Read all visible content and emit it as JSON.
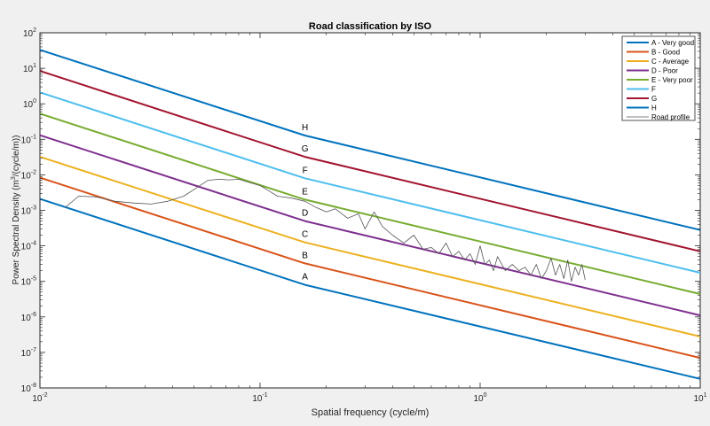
{
  "chart_data": {
    "type": "line",
    "title": "Road classification by ISO",
    "xlabel": "Spatial frequency (cycle/m)",
    "ylabel": {
      "pre": "Power Spectral Density (m",
      "sup": "3",
      "post": "/(cycle/m))"
    },
    "xscale": "log",
    "yscale": "log",
    "xlim": [
      0.01,
      10
    ],
    "ylim": [
      1e-08,
      100
    ],
    "grid": false,
    "legend_position": "top-right",
    "xticks": [
      {
        "value": 0.01,
        "base": "10",
        "exp": "-2"
      },
      {
        "value": 0.1,
        "base": "10",
        "exp": "-1"
      },
      {
        "value": 1,
        "base": "10",
        "exp": "0"
      },
      {
        "value": 10,
        "base": "10",
        "exp": "1"
      }
    ],
    "yticks": [
      {
        "value": 1e-08,
        "base": "10",
        "exp": "-8"
      },
      {
        "value": 1e-07,
        "base": "10",
        "exp": "-7"
      },
      {
        "value": 1e-06,
        "base": "10",
        "exp": "-6"
      },
      {
        "value": 1e-05,
        "base": "10",
        "exp": "-5"
      },
      {
        "value": 0.0001,
        "base": "10",
        "exp": "-4"
      },
      {
        "value": 0.001,
        "base": "10",
        "exp": "-3"
      },
      {
        "value": 0.01,
        "base": "10",
        "exp": "-2"
      },
      {
        "value": 0.1,
        "base": "10",
        "exp": "-1"
      },
      {
        "value": 1,
        "base": "10",
        "exp": "0"
      },
      {
        "value": 10,
        "base": "10",
        "exp": "1"
      },
      {
        "value": 100,
        "base": "10",
        "exp": "2"
      }
    ],
    "series": [
      {
        "name": "A - Very good",
        "label": "A",
        "color": "#0072bd",
        "x": [
          0.01,
          0.16,
          10
        ],
        "y": [
          0.0021,
          8e-06,
          1.8e-08
        ]
      },
      {
        "name": "B - Good",
        "label": "B",
        "color": "#d95319",
        "x": [
          0.01,
          0.16,
          10
        ],
        "y": [
          0.0083,
          3.2e-05,
          7e-08
        ]
      },
      {
        "name": "C - Average",
        "label": "C",
        "color": "#edb120",
        "x": [
          0.01,
          0.16,
          10
        ],
        "y": [
          0.032,
          0.000125,
          2.8e-07
        ]
      },
      {
        "name": "D - Poor",
        "label": "D",
        "color": "#7e2f8e",
        "x": [
          0.01,
          0.16,
          10
        ],
        "y": [
          0.13,
          0.0005,
          1.1e-06
        ]
      },
      {
        "name": "E - Very poor",
        "label": "E",
        "color": "#77ac30",
        "x": [
          0.01,
          0.16,
          10
        ],
        "y": [
          0.53,
          0.002,
          4.4e-06
        ]
      },
      {
        "name": "F",
        "label": "F",
        "color": "#4dbeee",
        "x": [
          0.01,
          0.16,
          10
        ],
        "y": [
          2.1,
          0.008,
          1.75e-05
        ]
      },
      {
        "name": "G",
        "label": "G",
        "color": "#a2142f",
        "x": [
          0.01,
          0.16,
          10
        ],
        "y": [
          8.4,
          0.032,
          7e-05
        ]
      },
      {
        "name": "H",
        "label": "H",
        "color": "#0072bd",
        "x": [
          0.01,
          0.16,
          10
        ],
        "y": [
          33,
          0.128,
          0.00028
        ]
      },
      {
        "name": "Road profile",
        "label": "",
        "color": "#555555",
        "x": [
          0.013,
          0.015,
          0.018,
          0.022,
          0.027,
          0.032,
          0.038,
          0.045,
          0.052,
          0.058,
          0.065,
          0.072,
          0.08,
          0.09,
          0.1,
          0.11,
          0.12,
          0.14,
          0.16,
          0.18,
          0.2,
          0.22,
          0.25,
          0.28,
          0.3,
          0.33,
          0.36,
          0.4,
          0.45,
          0.5,
          0.55,
          0.6,
          0.65,
          0.7,
          0.75,
          0.8,
          0.85,
          0.9,
          0.95,
          1.0,
          1.05,
          1.1,
          1.15,
          1.2,
          1.3,
          1.4,
          1.5,
          1.6,
          1.7,
          1.8,
          1.9,
          2.0,
          2.1,
          2.2,
          2.3,
          2.4,
          2.5,
          2.6,
          2.7,
          2.8,
          2.9,
          3.0
        ],
        "y": [
          0.0012,
          0.0025,
          0.0024,
          0.0018,
          0.0016,
          0.0015,
          0.0018,
          0.0025,
          0.0045,
          0.007,
          0.0075,
          0.0072,
          0.0075,
          0.006,
          0.005,
          0.0035,
          0.0025,
          0.0022,
          0.0018,
          0.0012,
          0.0009,
          0.0011,
          0.0006,
          0.0008,
          0.0003,
          0.0009,
          0.00035,
          0.0002,
          0.00012,
          0.0002,
          8e-05,
          9e-05,
          6e-05,
          0.00012,
          5e-05,
          7e-05,
          4e-05,
          6e-05,
          3e-05,
          0.0001,
          3e-05,
          4e-05,
          2e-05,
          5e-05,
          2e-05,
          3e-05,
          2e-05,
          2.5e-05,
          1.5e-05,
          3e-05,
          1.2e-05,
          2e-05,
          4.5e-05,
          1.5e-05,
          3e-05,
          1.2e-05,
          4e-05,
          1e-05,
          2.5e-05,
          1.5e-05,
          3e-05,
          1.1e-05
        ]
      }
    ]
  }
}
